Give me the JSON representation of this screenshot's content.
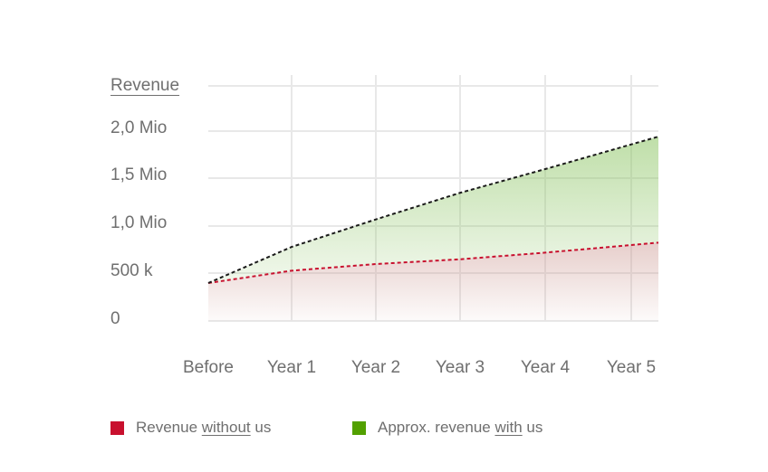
{
  "chart_data": {
    "type": "area",
    "ylabel": "Revenue",
    "categories": [
      "Before",
      "Year 1",
      "Year 2",
      "Year 3",
      "Year 4",
      "Year 5"
    ],
    "ytick_labels": [
      "0",
      "500 k",
      "1,0 Mio",
      "1,5 Mio",
      "2,0 Mio"
    ],
    "ytick_values": [
      0,
      500000,
      1000000,
      1500000,
      2000000
    ],
    "ylim": [
      0,
      2500000
    ],
    "grid": true,
    "legend_position": "bottom-left",
    "series": [
      {
        "id": "without",
        "values": [
          400000,
          530000,
          600000,
          650000,
          720000,
          800000
        ],
        "color": "#c8102e",
        "fill": "#d9b7b3"
      },
      {
        "id": "with",
        "values": [
          400000,
          780000,
          1070000,
          1350000,
          1600000,
          1860000
        ],
        "color": "#1a1a1a",
        "fill": "#8bc462"
      }
    ]
  },
  "legend": {
    "items": [
      {
        "pre": "Revenue ",
        "underlined": "without",
        "post": " us",
        "color": "#c8102e"
      },
      {
        "pre": "Approx. revenue ",
        "underlined": "with",
        "post": " us",
        "color": "#52a000"
      }
    ]
  }
}
